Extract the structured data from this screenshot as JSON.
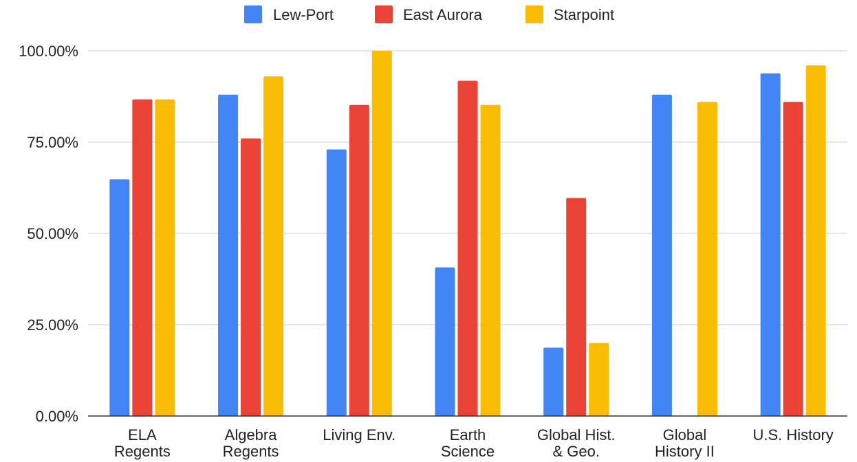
{
  "chart_data": {
    "type": "bar",
    "categories": [
      [
        "ELA",
        "Regents"
      ],
      [
        "Algebra",
        "Regents"
      ],
      [
        "Living Env."
      ],
      [
        "Earth",
        "Science"
      ],
      [
        "Global Hist.",
        "& Geo."
      ],
      [
        "Global",
        "History II"
      ],
      [
        "U.S. History"
      ]
    ],
    "series": [
      {
        "name": "Lew-Port",
        "color": "#4285F4",
        "values": [
          64.8,
          88.0,
          73.0,
          40.7,
          18.7,
          88.0,
          93.8
        ]
      },
      {
        "name": "East Aurora",
        "color": "#EA4335",
        "values": [
          86.7,
          76.0,
          85.2,
          91.8,
          59.7,
          null,
          86.0
        ]
      },
      {
        "name": "Starpoint",
        "color": "#FBBC04",
        "values": [
          86.7,
          93.0,
          100.0,
          85.2,
          20.0,
          86.0,
          96.0
        ]
      }
    ],
    "ylim": [
      0,
      100
    ],
    "yticks": [
      "0.00%",
      "25.00%",
      "50.00%",
      "75.00%",
      "100.00%"
    ],
    "ytick_values": [
      0,
      25,
      50,
      75,
      100
    ],
    "grid": true,
    "legend": "top-center"
  }
}
